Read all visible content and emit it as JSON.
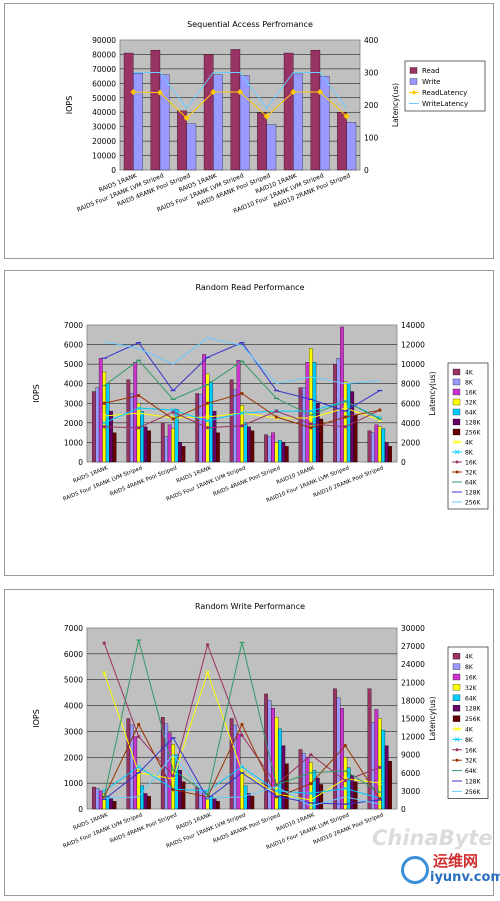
{
  "chart_data": [
    {
      "type": "bar",
      "title": "Sequential Access Perfromance",
      "ylabel": "IOPS",
      "y2label": "Latency(us)",
      "ylim": [
        0,
        90000
      ],
      "y2lim": [
        0,
        400
      ],
      "yticks": [
        0,
        10000,
        20000,
        30000,
        40000,
        50000,
        60000,
        70000,
        80000,
        90000
      ],
      "y2ticks": [
        0,
        100,
        200,
        300,
        400
      ],
      "grid": true,
      "legend_position": "right",
      "categories": [
        "RAID5 1RANK",
        "RAID5 Four 1RANK LVM Striped",
        "RAID5 4RANK Pool Striped",
        "RAID5 1RANK",
        "RAID5 Four 1RANK LVM Striped",
        "RAID5 4RANK Pool Striped",
        "RAID10 1RANK",
        "RAID10 Four 1RANK LVM Striped",
        "RAID10 2RANK Pool Striped"
      ],
      "series": [
        {
          "name": "Read",
          "kind": "bar",
          "color": "#993366",
          "values": [
            81000,
            83000,
            41000,
            80000,
            83500,
            39500,
            81000,
            83000,
            40000
          ]
        },
        {
          "name": "Write",
          "kind": "bar",
          "color": "#9999ff",
          "values": [
            67000,
            66000,
            32000,
            66000,
            65500,
            31500,
            66500,
            65000,
            33000
          ]
        },
        {
          "name": "ReadLatency",
          "kind": "line",
          "axis": "right",
          "color": "#ffcc00",
          "marker": "diamond",
          "values": [
            240,
            238,
            160,
            240,
            240,
            165,
            240,
            240,
            165
          ]
        },
        {
          "name": "WriteLatency",
          "kind": "line",
          "axis": "right",
          "color": "#66ccff",
          "marker": "none",
          "values": [
            300,
            300,
            190,
            300,
            300,
            190,
            300,
            300,
            190
          ]
        }
      ]
    },
    {
      "type": "bar",
      "title": "Random Read Performance",
      "ylabel": "IOPS",
      "y2label": "Latency(us)",
      "ylim": [
        0,
        7000
      ],
      "y2lim": [
        0,
        14000
      ],
      "yticks": [
        0,
        1000,
        2000,
        3000,
        4000,
        5000,
        6000,
        7000
      ],
      "y2ticks": [
        0,
        2000,
        4000,
        6000,
        8000,
        10000,
        12000,
        14000
      ],
      "grid": true,
      "legend_position": "right",
      "categories": [
        "RAID5 1RANK",
        "RAID5 Four 1RANK LVM Striped",
        "RAID5 4RANK Pool Striped",
        "RAID5 1RANK",
        "RAID5 Four 1RANK LVM Striped",
        "RAID5 4RANK Pool Striped",
        "RAID10 1RANK",
        "RAID10 Four 1RANK LVM Striped",
        "RAID10 2RANK Pool Striped"
      ],
      "series": [
        {
          "name": "4K",
          "kind": "bar",
          "color": "#993366",
          "values": [
            3600,
            4200,
            2000,
            3500,
            4200,
            1400,
            3800,
            5000,
            1600
          ]
        },
        {
          "name": "8K",
          "kind": "bar",
          "color": "#9999ff",
          "values": [
            3800,
            3500,
            1300,
            3450,
            3700,
            1300,
            3800,
            5300,
            1500
          ]
        },
        {
          "name": "16K",
          "kind": "bar",
          "color": "#cc33cc",
          "values": [
            5300,
            5100,
            1900,
            5500,
            5200,
            1500,
            5100,
            6900,
            1900
          ]
        },
        {
          "name": "32K",
          "kind": "bar",
          "color": "#ffff00",
          "values": [
            4600,
            3000,
            1700,
            4500,
            2900,
            1000,
            5800,
            4100,
            1800
          ]
        },
        {
          "name": "64K",
          "kind": "bar",
          "color": "#00ccff",
          "values": [
            4000,
            2600,
            2700,
            4100,
            2000,
            1100,
            5100,
            4000,
            1700
          ]
        },
        {
          "name": "128K",
          "kind": "bar",
          "color": "#660066",
          "values": [
            2600,
            1800,
            1000,
            2600,
            1800,
            1000,
            3000,
            3600,
            1000
          ]
        },
        {
          "name": "256K",
          "kind": "bar",
          "color": "#660000",
          "values": [
            1500,
            1600,
            800,
            1500,
            1600,
            800,
            2200,
            2400,
            800
          ]
        },
        {
          "name": "4K",
          "kind": "line",
          "axis": "right",
          "color": "#ffff00",
          "marker": "x",
          "values": [
            4700,
            5000,
            4500,
            4600,
            5000,
            4500,
            4500,
            5500,
            4300
          ]
        },
        {
          "name": "8K",
          "kind": "line",
          "axis": "right",
          "color": "#00ccff",
          "marker": "x",
          "values": [
            4000,
            5500,
            5300,
            4200,
            5000,
            5200,
            5200,
            6200,
            4500
          ]
        },
        {
          "name": "16K",
          "kind": "line",
          "axis": "right",
          "color": "#993366",
          "marker": "dot",
          "values": [
            3600,
            3500,
            5100,
            3500,
            3700,
            5200,
            3900,
            3600,
            5300
          ]
        },
        {
          "name": "32K",
          "kind": "line",
          "axis": "right",
          "color": "#993300",
          "marker": "dot",
          "values": [
            6000,
            6800,
            4400,
            6000,
            7000,
            4600,
            3500,
            4600,
            5300
          ]
        },
        {
          "name": "64K",
          "kind": "line",
          "axis": "right",
          "color": "#339966",
          "marker": "dash",
          "values": [
            7800,
            10400,
            6400,
            7900,
            10300,
            6500,
            4800,
            6200,
            4400
          ]
        },
        {
          "name": "128K",
          "kind": "line",
          "axis": "right",
          "color": "#3333cc",
          "marker": "dash",
          "values": [
            10600,
            12200,
            7300,
            10700,
            12200,
            7300,
            6400,
            5200,
            7300
          ]
        },
        {
          "name": "256K",
          "kind": "line",
          "axis": "right",
          "color": "#66ccff",
          "marker": "none",
          "values": [
            12300,
            11600,
            10000,
            12700,
            11900,
            8000,
            8700,
            8000,
            8300
          ]
        }
      ]
    },
    {
      "type": "bar",
      "title": "Random Write Performance",
      "ylabel": "IOPS",
      "y2label": "Latency(us)",
      "ylim": [
        0,
        7000
      ],
      "y2lim": [
        0,
        30000
      ],
      "yticks": [
        0,
        1000,
        2000,
        3000,
        4000,
        5000,
        6000,
        7000
      ],
      "y2ticks": [
        0,
        3000,
        6000,
        9000,
        12000,
        15000,
        18000,
        21000,
        24000,
        27000,
        30000
      ],
      "grid": true,
      "legend_position": "right",
      "categories": [
        "RAID5 1RANK",
        "RAID5 Four 1RANK LVM Striped",
        "RAID5 4RANK Pool Striped",
        "RAID5 1RANK",
        "RAID5 Four 1RANK LVM Striped",
        "RAID5 4RANK Pool Striped",
        "RAID10 1RANK",
        "RAID10 Four 1RANK LVM Striped",
        "RAID10 2RANK Pool Striped"
      ],
      "series": [
        {
          "name": "4K",
          "kind": "bar",
          "color": "#993366",
          "values": [
            850,
            3500,
            3550,
            850,
            3500,
            4450,
            2300,
            4650,
            4650
          ]
        },
        {
          "name": "8K",
          "kind": "bar",
          "color": "#9999ff",
          "values": [
            800,
            3250,
            3300,
            800,
            3250,
            4200,
            2150,
            4300,
            3350
          ]
        },
        {
          "name": "16K",
          "kind": "bar",
          "color": "#cc33cc",
          "values": [
            700,
            2800,
            2950,
            700,
            2900,
            3900,
            2000,
            3900,
            3850
          ]
        },
        {
          "name": "32K",
          "kind": "bar",
          "color": "#ffff00",
          "values": [
            600,
            1500,
            2500,
            600,
            1500,
            3550,
            1800,
            2000,
            3500
          ]
        },
        {
          "name": "64K",
          "kind": "bar",
          "color": "#00ccff",
          "values": [
            500,
            900,
            2100,
            500,
            900,
            3100,
            1500,
            1600,
            3050
          ]
        },
        {
          "name": "128K",
          "kind": "bar",
          "color": "#660066",
          "values": [
            400,
            600,
            1500,
            400,
            600,
            2450,
            1200,
            1300,
            2450
          ]
        },
        {
          "name": "256K",
          "kind": "bar",
          "color": "#660000",
          "values": [
            300,
            500,
            1050,
            300,
            500,
            1750,
            950,
            1050,
            1850
          ]
        },
        {
          "name": "4K",
          "kind": "line",
          "axis": "right",
          "color": "#ffff00",
          "marker": "x",
          "values": [
            22500,
            6000,
            5000,
            22600,
            6200,
            2500,
            1500,
            5000,
            4300
          ]
        },
        {
          "name": "8K",
          "kind": "line",
          "axis": "right",
          "color": "#00ccff",
          "marker": "x",
          "values": [
            3000,
            7000,
            3300,
            3000,
            7000,
            3000,
            2600,
            3400,
            1800
          ]
        },
        {
          "name": "16K",
          "kind": "line",
          "axis": "right",
          "color": "#993366",
          "marker": "dot",
          "values": [
            27500,
            12000,
            5500,
            27200,
            12200,
            4000,
            9000,
            4700,
            6900
          ]
        },
        {
          "name": "32K",
          "kind": "line",
          "axis": "right",
          "color": "#993300",
          "marker": "dot",
          "values": [
            2000,
            14000,
            3200,
            2000,
            14000,
            2000,
            4200,
            10500,
            1700
          ]
        },
        {
          "name": "64K",
          "kind": "line",
          "axis": "right",
          "color": "#339966",
          "marker": "dash",
          "values": [
            2200,
            28000,
            6500,
            2400,
            27600,
            4000,
            6000,
            6300,
            2800
          ]
        },
        {
          "name": "128K",
          "kind": "line",
          "axis": "right",
          "color": "#3333cc",
          "marker": "dash",
          "values": [
            1600,
            6000,
            11800,
            1700,
            6000,
            2100,
            1000,
            800,
            1500
          ]
        },
        {
          "name": "256K",
          "kind": "line",
          "axis": "right",
          "color": "#66ccff",
          "marker": "none",
          "values": [
            1800,
            2000,
            9000,
            1800,
            2000,
            3700,
            500,
            2000,
            800
          ]
        }
      ]
    }
  ],
  "watermark": {
    "brand": "ChinaByte",
    "site_cn": "运维网",
    "site": "iyunv.com"
  }
}
